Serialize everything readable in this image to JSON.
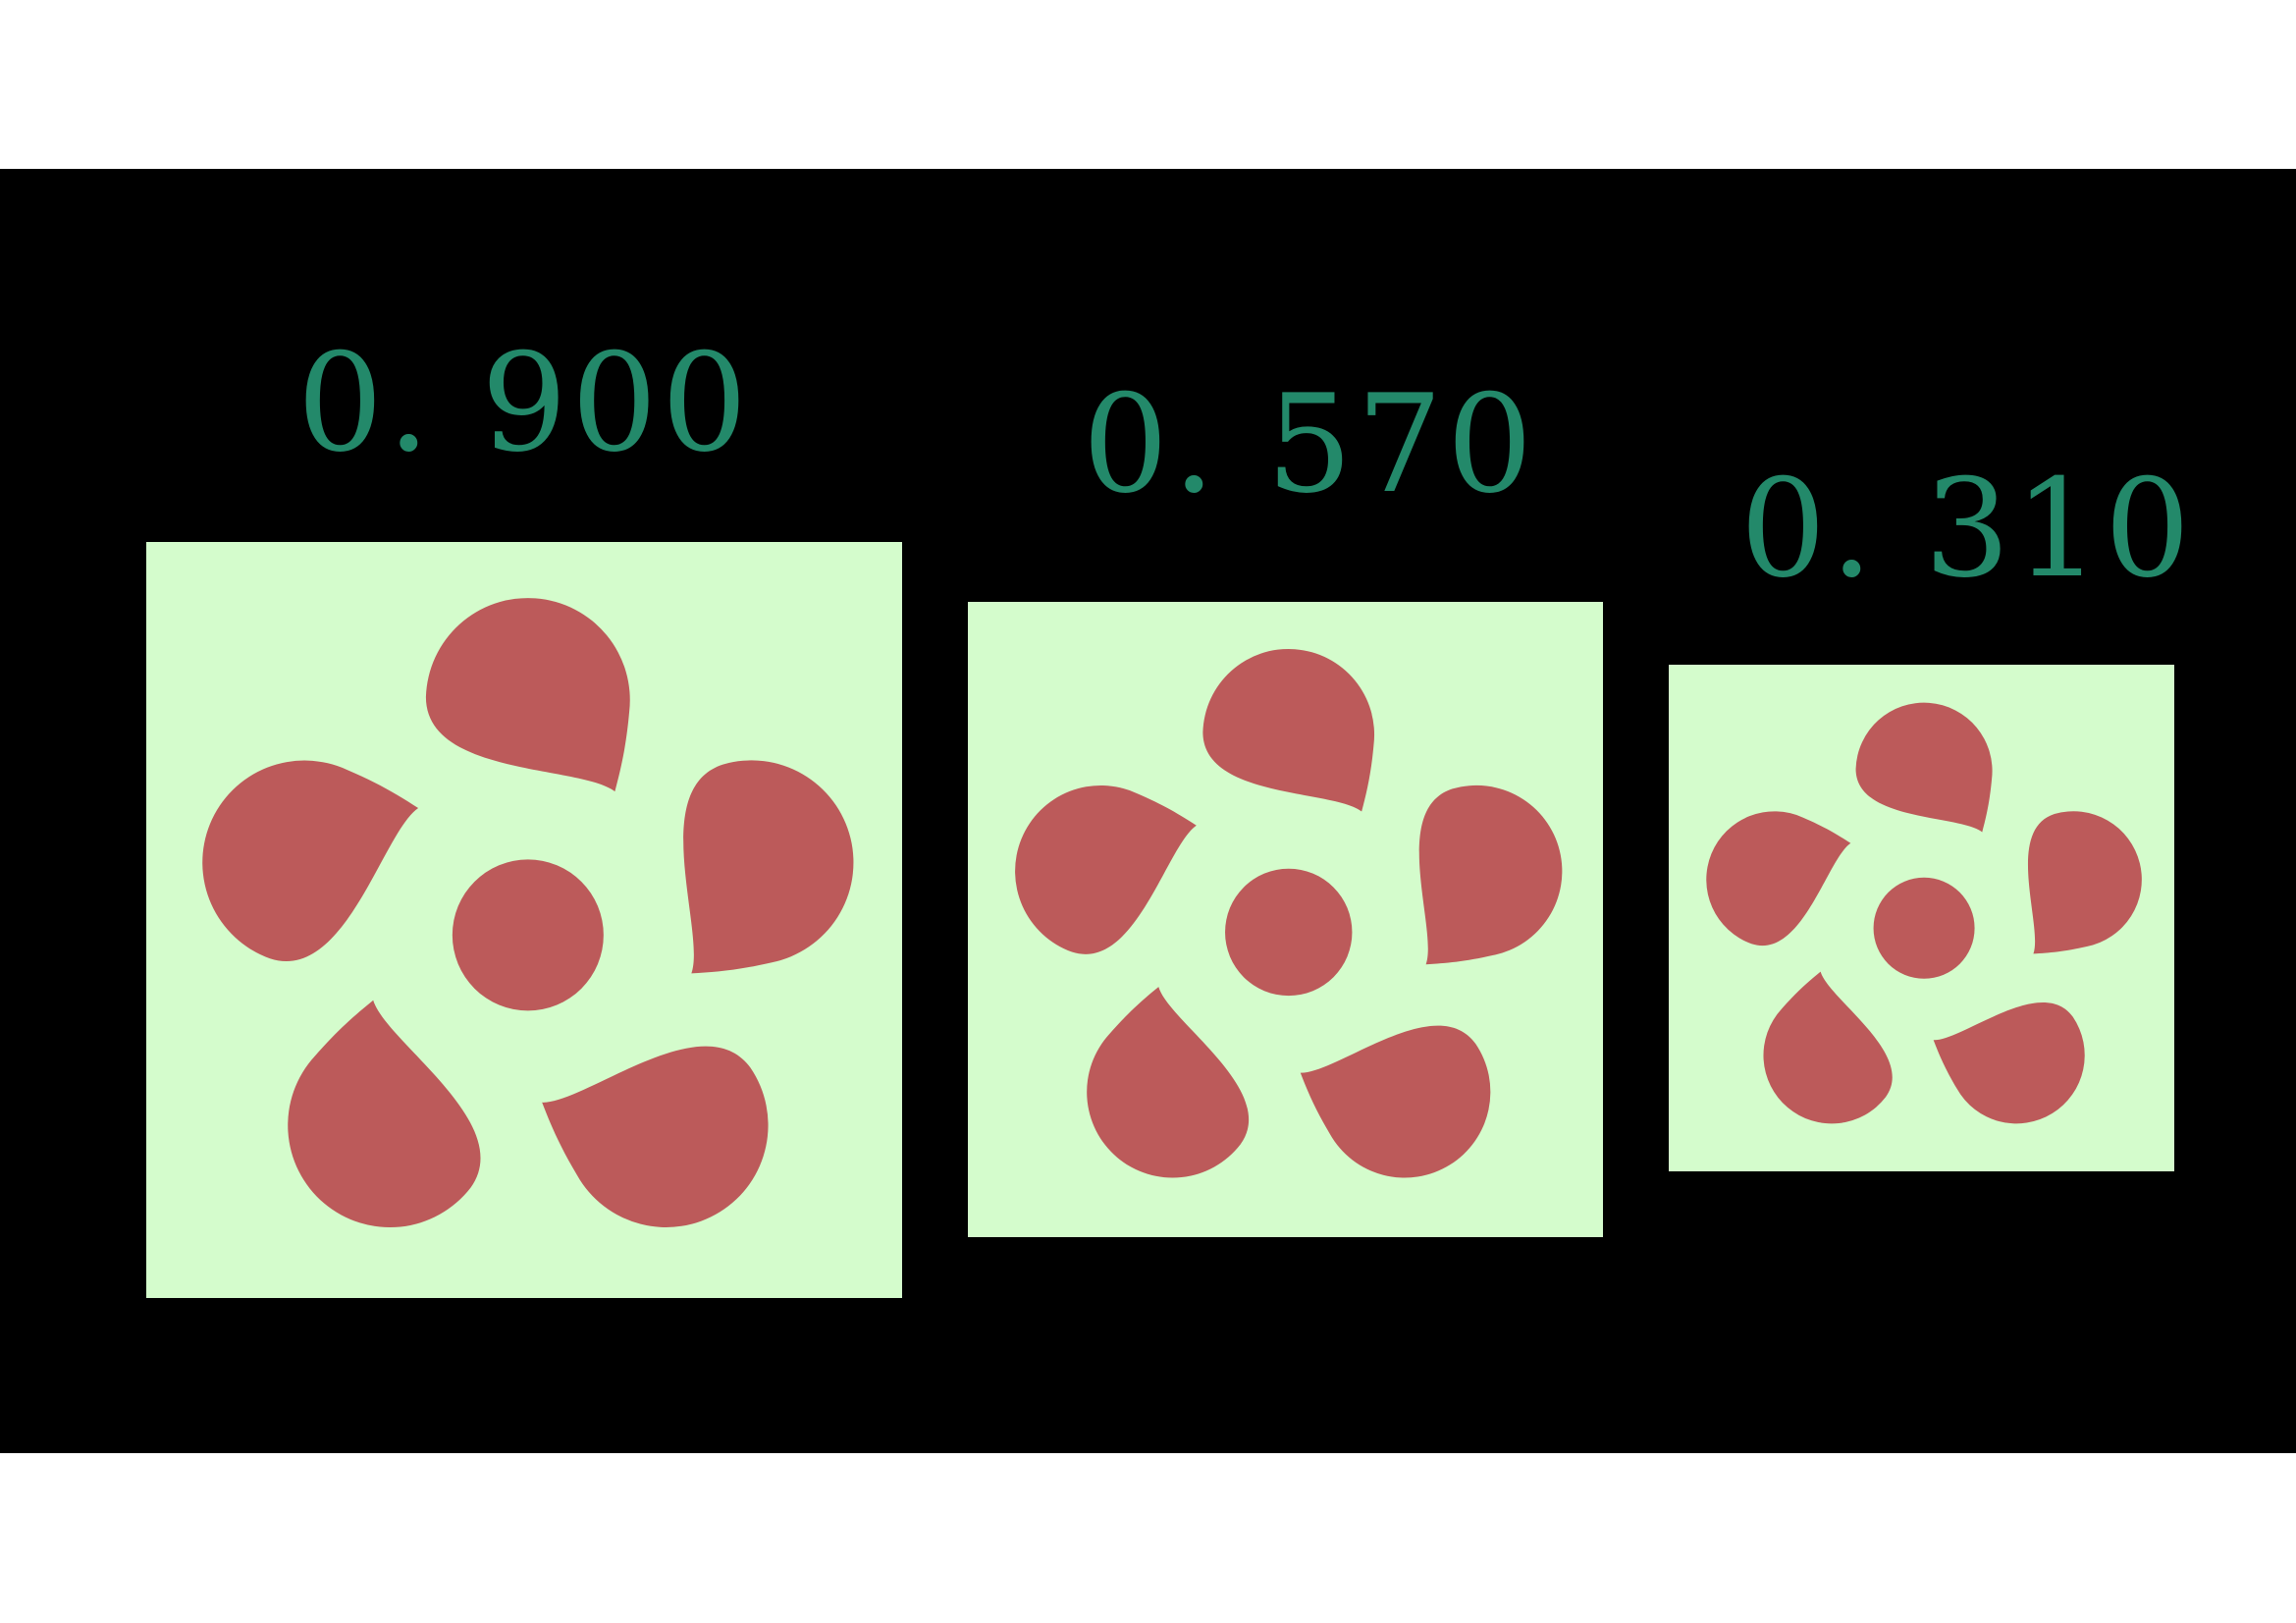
{
  "colors": {
    "background": "#000000",
    "label": "#23896a",
    "panel": "#d4fccc",
    "flower": "#bc5a5a"
  },
  "items": [
    {
      "label": "0. 900",
      "scale": 0.9
    },
    {
      "label": "0. 570",
      "scale": 0.57
    },
    {
      "label": "0. 310",
      "scale": 0.31
    }
  ]
}
